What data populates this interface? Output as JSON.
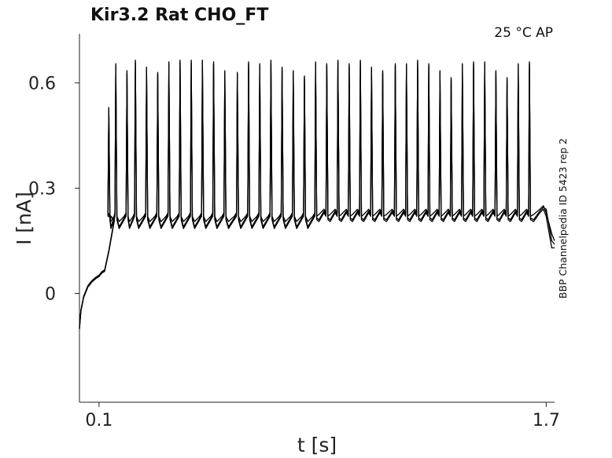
{
  "chart_data": {
    "type": "line",
    "title": "Kir3.2  Rat  CHO_FT",
    "condition_label": "25 °C  AP",
    "side_label": "BBP Channelpedia ID 5423 rep 2",
    "xlabel": "t [s]",
    "ylabel": "I [nA]",
    "xlim": [
      0.03,
      1.73
    ],
    "ylim": [
      -0.31,
      0.74
    ],
    "x_ticks": [
      0.1,
      1.7
    ],
    "x_tick_labels": [
      "0.1",
      "1.7"
    ],
    "y_ticks": [
      0,
      0.3,
      0.6
    ],
    "y_tick_labels": [
      "0",
      "0.3",
      "0.6"
    ],
    "grid": false,
    "legend": "none",
    "trace_color": "#000000",
    "baseline": {
      "recovery_x": [
        0.03,
        0.035,
        0.045,
        0.06,
        0.075,
        0.09,
        0.1,
        0.11,
        0.12,
        0.135,
        0.155
      ],
      "recovery_y": [
        -0.1,
        -0.05,
        -0.01,
        0.02,
        0.035,
        0.045,
        0.05,
        0.06,
        0.065,
        0.12,
        0.21
      ],
      "sustained_level": [
        0.21,
        0.205,
        0.2
      ],
      "tail_x": [
        1.7,
        1.72,
        1.73
      ],
      "tail_y": [
        [
          0.23,
          0.17,
          0.15
        ],
        [
          0.24,
          0.15,
          0.14
        ],
        [
          0.22,
          0.13,
          0.13
        ]
      ]
    },
    "spikes": {
      "times": [
        0.135,
        0.16,
        0.2,
        0.23,
        0.27,
        0.31,
        0.35,
        0.39,
        0.43,
        0.47,
        0.51,
        0.55,
        0.595,
        0.635,
        0.675,
        0.715,
        0.755,
        0.795,
        0.835,
        0.875,
        0.915,
        0.955,
        0.995,
        1.035,
        1.075,
        1.115,
        1.16,
        1.2,
        1.24,
        1.28,
        1.32,
        1.36,
        1.4,
        1.44,
        1.48,
        1.52,
        1.56,
        1.6,
        1.64
      ],
      "peaks": [
        0.53,
        0.655,
        0.635,
        0.665,
        0.645,
        0.63,
        0.66,
        0.665,
        0.665,
        0.665,
        0.66,
        0.635,
        0.63,
        0.66,
        0.655,
        0.665,
        0.645,
        0.635,
        0.62,
        0.66,
        0.655,
        0.665,
        0.655,
        0.665,
        0.645,
        0.635,
        0.655,
        0.655,
        0.665,
        0.655,
        0.635,
        0.615,
        0.655,
        0.66,
        0.66,
        0.635,
        0.615,
        0.655,
        0.66
      ],
      "trough_min": [
        0.195,
        0.18,
        0.175
      ]
    }
  }
}
